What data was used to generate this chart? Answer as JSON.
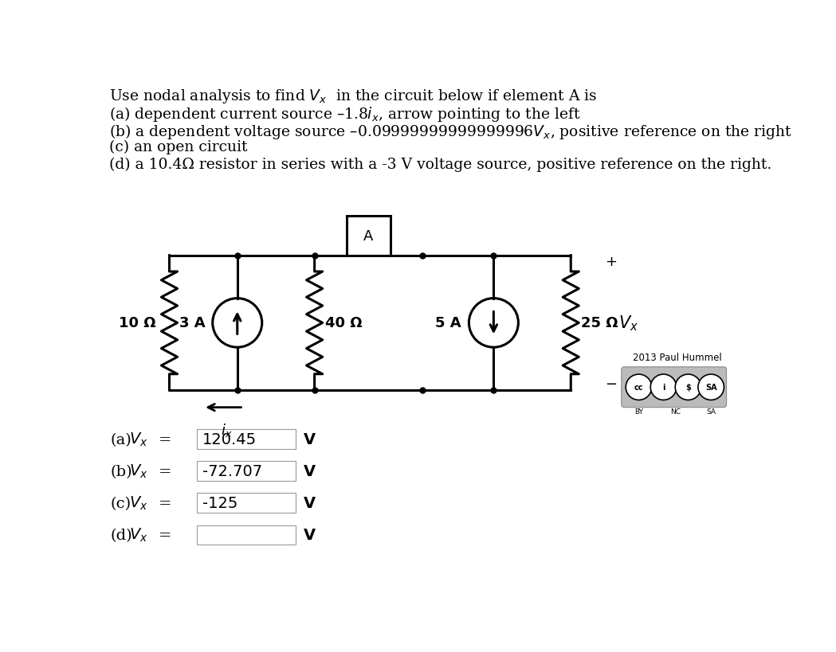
{
  "title_text": "Use nodal analysis to find $V_x$  in the circuit below if element A is",
  "line1": "(a) dependent current source –1.8$i_x$, arrow pointing to the left",
  "line2": "(b) a dependent voltage source –0.09999999999999996$V_x$, positive reference on the right",
  "line3": "(c) an open circuit",
  "line4": "(d) a 10.4Ω resistor in series with a -3 V voltage source, positive reference on the right.",
  "ans_a_val": "120.45",
  "ans_b_val": "-72.707",
  "ans_c_val": "-125",
  "ans_d_val": "",
  "V_unit": "V",
  "bg_color": "#ffffff",
  "circuit_color": "#000000",
  "text_color_blue": "#1a1aff",
  "font_size_text": 13.5,
  "font_size_ans": 14,
  "copyright": "2013 Paul Hummel"
}
